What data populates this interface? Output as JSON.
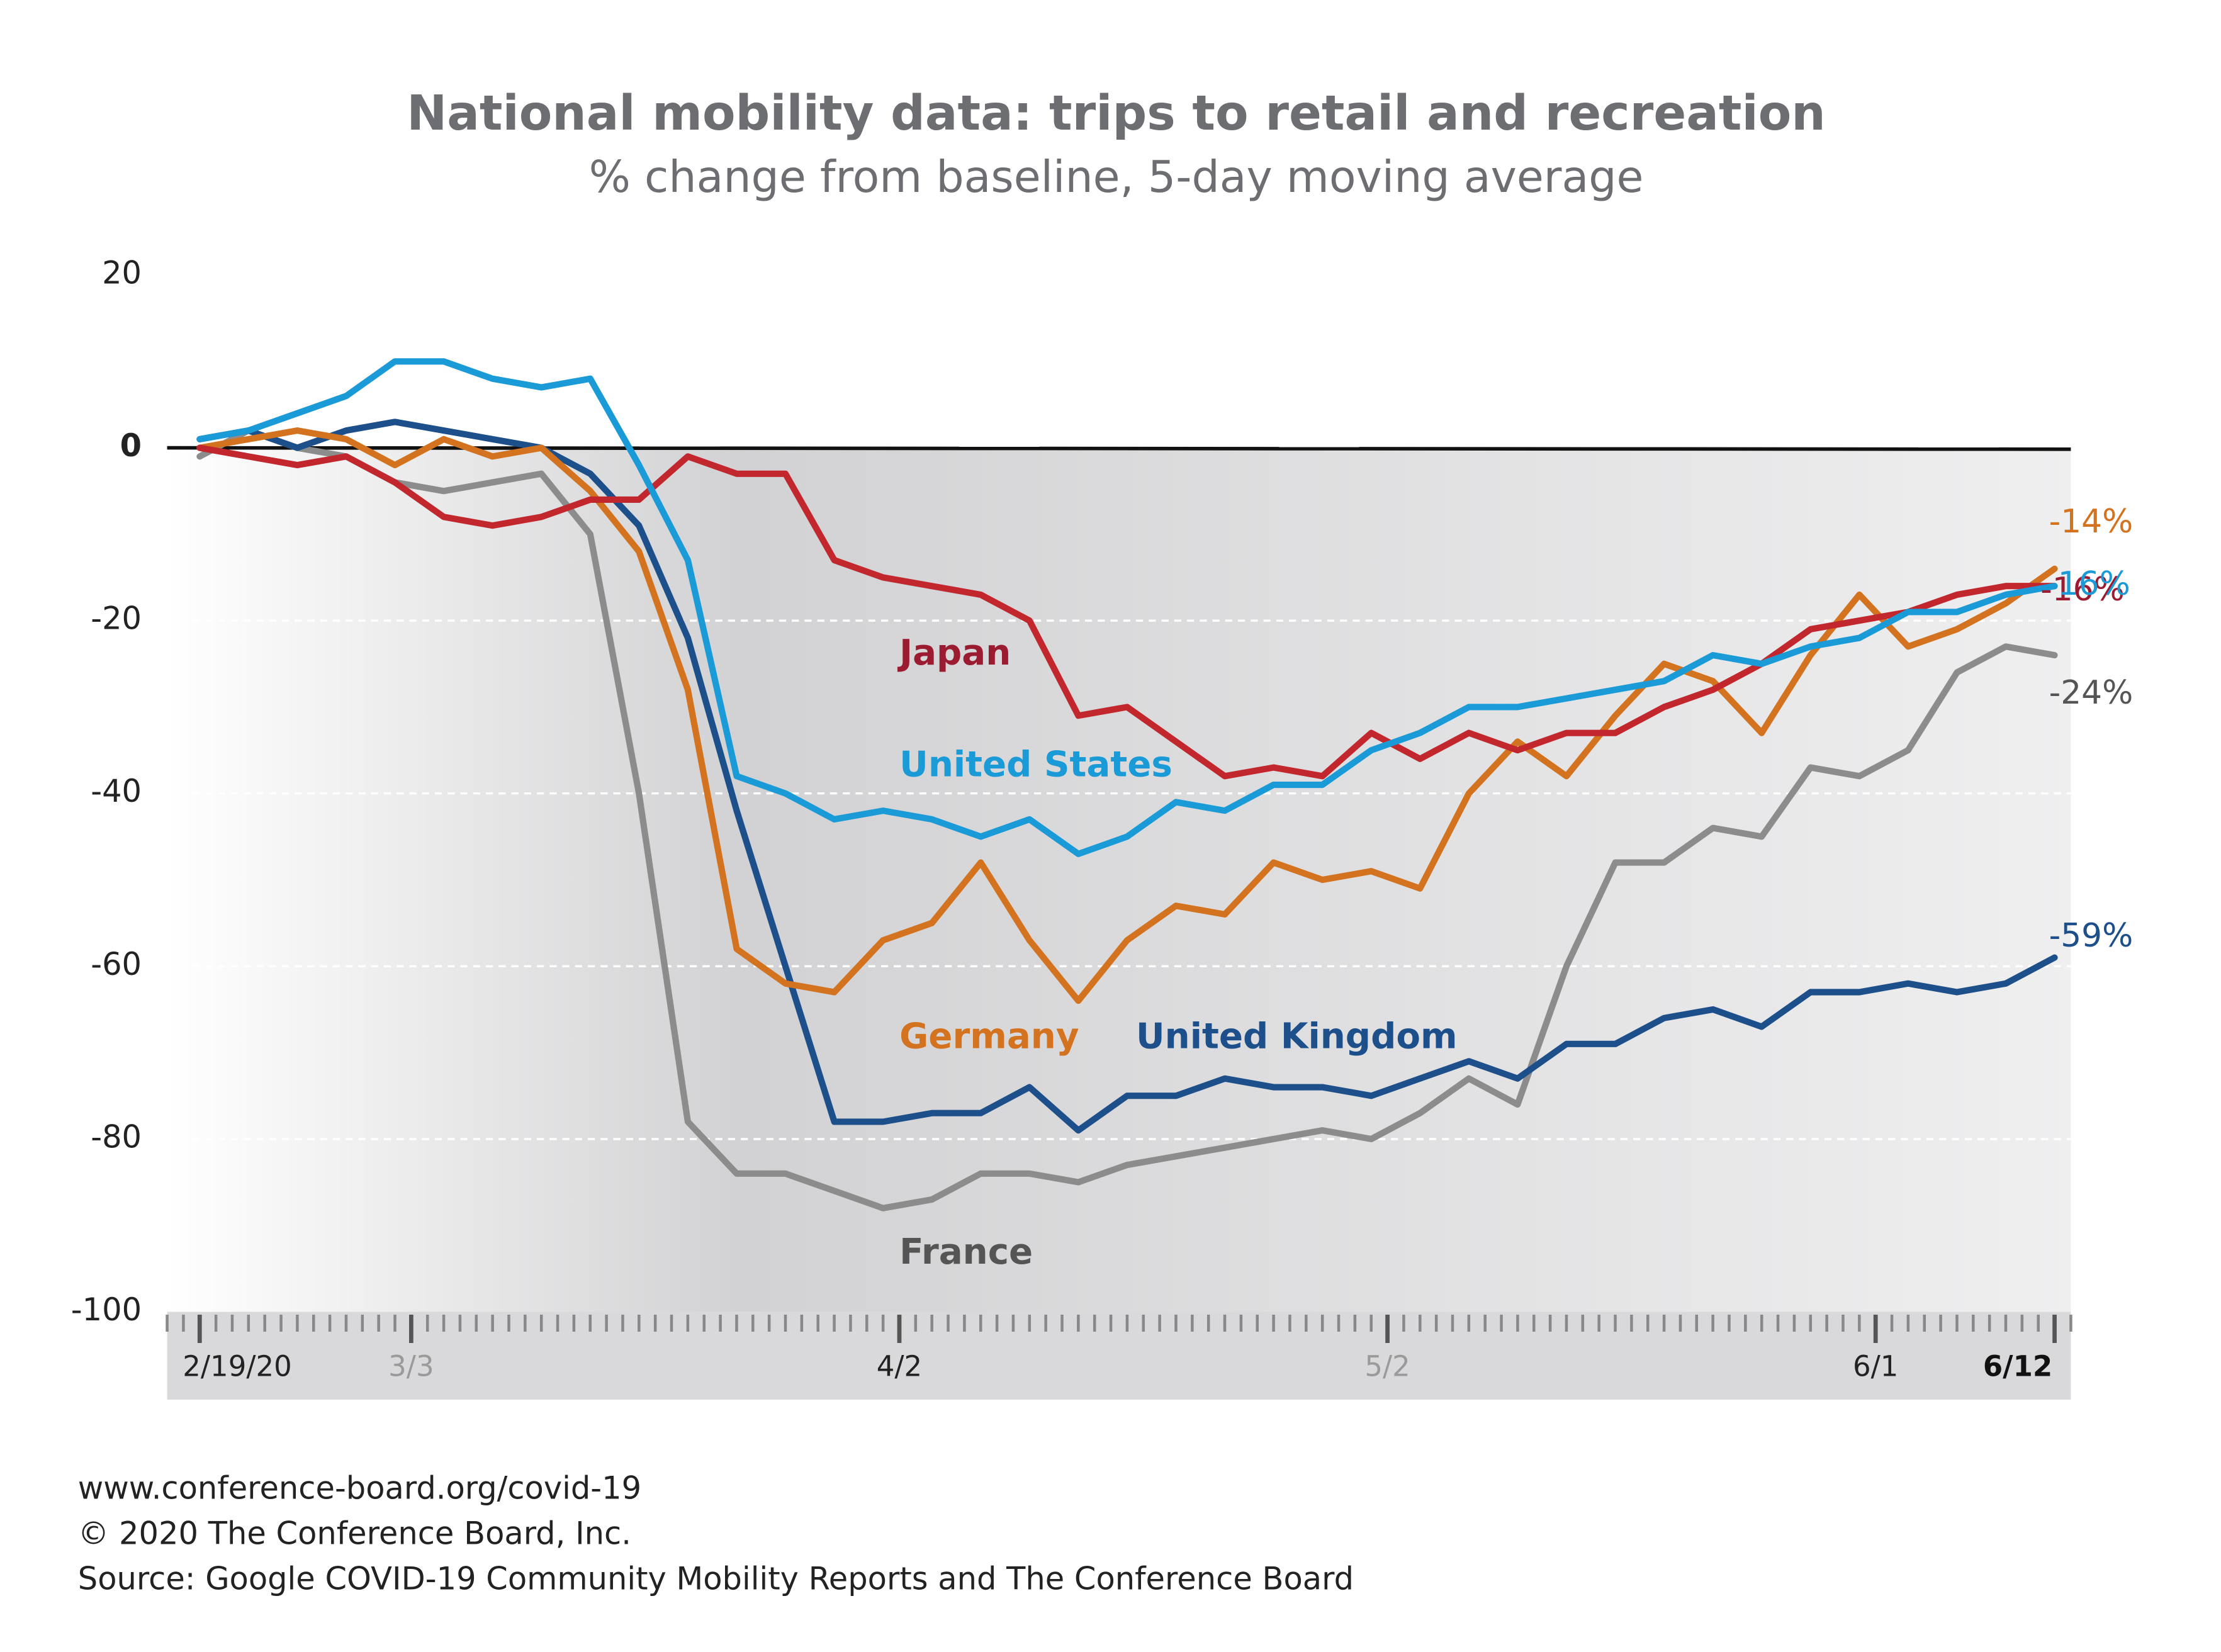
{
  "chart_data": {
    "type": "line",
    "title": "National mobility data: trips to retail and recreation",
    "subtitle": "% change from baseline, 5-day moving average",
    "x": [
      0,
      3,
      6,
      9,
      12,
      15,
      18,
      21,
      24,
      27,
      30,
      33,
      36,
      39,
      42,
      45,
      48,
      51,
      54,
      57,
      60,
      63,
      66,
      69,
      72,
      75,
      78,
      81,
      84,
      87,
      90,
      93,
      96,
      99,
      102,
      105,
      108,
      111,
      114
    ],
    "xlim": [
      -2,
      115
    ],
    "xticks": [
      {
        "value": 0,
        "label": "2/19/20"
      },
      {
        "value": 13,
        "label": "3/3"
      },
      {
        "value": 43,
        "label": "4/2"
      },
      {
        "value": 73,
        "label": "5/2"
      },
      {
        "value": 103,
        "label": "6/1"
      },
      {
        "value": 114,
        "label": "6/12"
      }
    ],
    "ylim": [
      -100,
      20
    ],
    "yticks": [
      -100,
      -80,
      -60,
      -40,
      -20,
      0,
      20
    ],
    "grid": true,
    "series": [
      {
        "name": "Japan",
        "color": "#c1272d",
        "label_color": "#9b1b30",
        "values": [
          0,
          -1,
          -2,
          -1,
          -4,
          -8,
          -9,
          -8,
          -6,
          -6,
          -1,
          -3,
          -3,
          -13,
          -15,
          -16,
          -17,
          -20,
          -31,
          -30,
          -34,
          -38,
          -37,
          -38,
          -33,
          -36,
          -33,
          -35,
          -33,
          -33,
          -30,
          -28,
          -25,
          -21,
          -20,
          -19,
          -17,
          -16,
          -16
        ],
        "value_labels": [
          null,
          null,
          null,
          null,
          null,
          null,
          null,
          null,
          null,
          null,
          null,
          null,
          null,
          null,
          null,
          null,
          null,
          null,
          null,
          null,
          null,
          null,
          null,
          null,
          null,
          null,
          null,
          null,
          null,
          null,
          null,
          null,
          null,
          null,
          null,
          null,
          null,
          null,
          "-16%"
        ]
      },
      {
        "name": "United States",
        "color": "#1a9ad6",
        "label_color": "#1a9ad6",
        "values": [
          1,
          2,
          4,
          6,
          10,
          10,
          8,
          7,
          8,
          -2,
          -13,
          -38,
          -40,
          -43,
          -42,
          -43,
          -45,
          -43,
          -47,
          -45,
          -41,
          -42,
          -39,
          -39,
          -35,
          -33,
          -30,
          -30,
          -29,
          -28,
          -27,
          -24,
          -25,
          -23,
          -22,
          -19,
          -19,
          -17,
          -16
        ],
        "value_labels": [
          null,
          null,
          null,
          null,
          null,
          null,
          null,
          null,
          null,
          null,
          null,
          null,
          null,
          null,
          null,
          null,
          null,
          null,
          null,
          null,
          null,
          null,
          null,
          null,
          null,
          null,
          null,
          null,
          null,
          null,
          null,
          null,
          null,
          null,
          null,
          null,
          null,
          null,
          "-16%"
        ]
      },
      {
        "name": "Germany",
        "color": "#d4731f",
        "label_color": "#d4731f",
        "values": [
          0,
          1,
          2,
          1,
          -2,
          1,
          -1,
          0,
          -5,
          -12,
          -28,
          -58,
          -62,
          -63,
          -57,
          -55,
          -48,
          -57,
          -64,
          -57,
          -53,
          -54,
          -48,
          -50,
          -49,
          -51,
          -40,
          -34,
          -38,
          -31,
          -25,
          -27,
          -33,
          -24,
          -17,
          -23,
          -21,
          -18,
          -14
        ],
        "value_labels": [
          null,
          null,
          null,
          null,
          null,
          null,
          null,
          null,
          null,
          null,
          null,
          null,
          null,
          null,
          null,
          null,
          null,
          null,
          null,
          null,
          null,
          null,
          null,
          null,
          null,
          null,
          null,
          null,
          null,
          null,
          null,
          null,
          null,
          null,
          null,
          null,
          null,
          null,
          "-14%"
        ]
      },
      {
        "name": "United Kingdom",
        "color": "#1d4f8a",
        "label_color": "#1d4f8a",
        "values": [
          1,
          2,
          0,
          2,
          3,
          2,
          1,
          0,
          -3,
          -9,
          -22,
          -42,
          -60,
          -78,
          -78,
          -77,
          -77,
          -74,
          -79,
          -75,
          -75,
          -73,
          -74,
          -74,
          -75,
          -73,
          -71,
          -73,
          -69,
          -69,
          -66,
          -65,
          -67,
          -63,
          -63,
          -62,
          -63,
          -62,
          -59
        ],
        "value_labels": [
          null,
          null,
          null,
          null,
          null,
          null,
          null,
          null,
          null,
          null,
          null,
          null,
          null,
          null,
          null,
          null,
          null,
          null,
          null,
          null,
          null,
          null,
          null,
          null,
          null,
          null,
          null,
          null,
          null,
          null,
          null,
          null,
          null,
          null,
          null,
          null,
          null,
          null,
          "-59%"
        ]
      },
      {
        "name": "France",
        "color": "#8c8c8c",
        "label_color": "#555555",
        "values": [
          -1,
          2,
          0,
          -1,
          -4,
          -5,
          -4,
          -3,
          -10,
          -40,
          -78,
          -84,
          -84,
          -86,
          -88,
          -87,
          -84,
          -84,
          -85,
          -83,
          -82,
          -81,
          -80,
          -79,
          -80,
          -77,
          -73,
          -76,
          -60,
          -48,
          -48,
          -44,
          -45,
          -37,
          -38,
          -35,
          -26,
          -23,
          -24
        ],
        "value_labels": [
          null,
          null,
          null,
          null,
          null,
          null,
          null,
          null,
          null,
          null,
          null,
          null,
          null,
          null,
          null,
          null,
          null,
          null,
          null,
          null,
          null,
          null,
          null,
          null,
          null,
          null,
          null,
          null,
          null,
          null,
          null,
          null,
          null,
          null,
          null,
          null,
          null,
          null,
          "-24%"
        ]
      }
    ],
    "footer": [
      "www.conference-board.org/covid-19",
      "© 2020 The Conference Board, Inc.",
      "Source: Google COVID-19 Community Mobility Reports and The Conference Board"
    ]
  }
}
